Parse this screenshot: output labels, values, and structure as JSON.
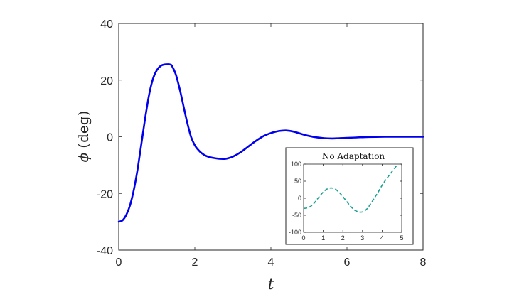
{
  "chart_data": [
    {
      "type": "line",
      "title": "",
      "xlabel": "t",
      "ylabel_symbol": "ϕ",
      "ylabel_unit": "(deg)",
      "xlim": [
        0,
        8
      ],
      "ylim": [
        -40,
        40
      ],
      "xticks": [
        0,
        2,
        4,
        6,
        8
      ],
      "yticks": [
        -40,
        -20,
        0,
        20,
        40
      ],
      "grid": false,
      "series": [
        {
          "color": "#0000ee",
          "style": "solid",
          "x": [
            0,
            0.1,
            0.2,
            0.3,
            0.4,
            0.5,
            0.6,
            0.7,
            0.8,
            0.9,
            1.0,
            1.1,
            1.2,
            1.3,
            1.35,
            1.4,
            1.5,
            1.6,
            1.7,
            1.8,
            1.9,
            2.0,
            2.1,
            2.2,
            2.3,
            2.4,
            2.5,
            2.6,
            2.7,
            2.8,
            2.9,
            3.0,
            3.2,
            3.4,
            3.6,
            3.8,
            4.0,
            4.2,
            4.4,
            4.6,
            4.8,
            5.0,
            5.2,
            5.4,
            5.6,
            5.8,
            6.0,
            6.5,
            7.0,
            7.5,
            8.0
          ],
          "y": [
            -30,
            -29.5,
            -27.5,
            -24,
            -18.5,
            -11,
            -2,
            7,
            15,
            20.5,
            23.5,
            25,
            25.5,
            25.6,
            25.5,
            25,
            22,
            17,
            11,
            5,
            0,
            -3,
            -4.8,
            -6,
            -6.8,
            -7.2,
            -7.5,
            -7.7,
            -7.8,
            -7.8,
            -7.5,
            -7,
            -5.5,
            -3.5,
            -1.5,
            0.2,
            1.3,
            2,
            2.2,
            1.8,
            1,
            0.3,
            -0.2,
            -0.5,
            -0.6,
            -0.5,
            -0.4,
            -0.1,
            0,
            0,
            0
          ]
        }
      ]
    },
    {
      "type": "line",
      "title": "No Adaptation",
      "xlabel": "",
      "ylabel": "",
      "xlim": [
        0,
        5
      ],
      "ylim": [
        -100,
        100
      ],
      "xticks": [
        0,
        1,
        2,
        3,
        4,
        5
      ],
      "yticks": [
        -100,
        -50,
        0,
        50,
        100
      ],
      "grid": false,
      "series": [
        {
          "color": "#1aa090",
          "style": "dashed",
          "x": [
            0,
            0.2,
            0.4,
            0.6,
            0.8,
            1.0,
            1.2,
            1.4,
            1.6,
            1.8,
            2.0,
            2.2,
            2.4,
            2.6,
            2.8,
            3.0,
            3.2,
            3.4,
            3.6,
            3.8,
            4.0,
            4.2,
            4.4,
            4.6,
            4.8
          ],
          "y": [
            -30,
            -28,
            -22,
            -10,
            5,
            18,
            27,
            30,
            27,
            18,
            5,
            -10,
            -24,
            -35,
            -40,
            -40,
            -33,
            -18,
            0,
            18,
            38,
            55,
            70,
            85,
            100
          ]
        }
      ]
    }
  ]
}
